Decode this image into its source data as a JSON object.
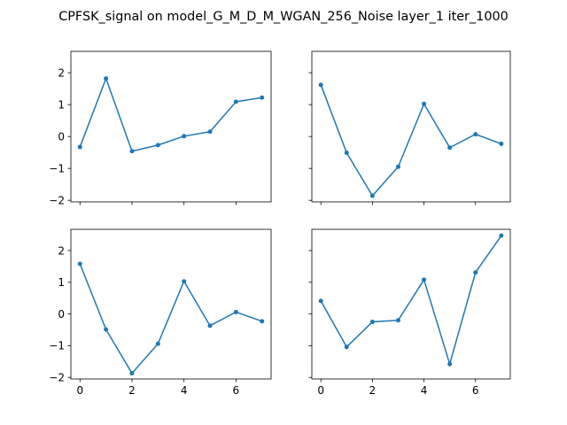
{
  "title": "CPFSK_signal on model_G_M_D_M_WGAN_256_Noise layer_1 iter_1000",
  "line_color": "#1f77b4",
  "chart_data": [
    {
      "type": "line",
      "x": [
        0,
        1,
        2,
        3,
        4,
        5,
        6,
        7
      ],
      "series": [
        {
          "values": [
            -0.33,
            1.82,
            -0.46,
            -0.27,
            0.01,
            0.15,
            1.09,
            1.22
          ]
        }
      ],
      "xlim": [
        -0.35,
        7.35
      ],
      "ylim": [
        -2.05,
        2.67
      ],
      "xticks": [
        0,
        2,
        4,
        6
      ],
      "yticks": [
        -2,
        -1,
        0,
        1,
        2
      ],
      "show_xticklabels": false,
      "show_yticklabels": true,
      "grid": false
    },
    {
      "type": "line",
      "x": [
        0,
        1,
        2,
        3,
        4,
        5,
        6,
        7
      ],
      "series": [
        {
          "values": [
            1.62,
            -0.51,
            -1.86,
            -0.95,
            1.02,
            -0.35,
            0.07,
            -0.23
          ]
        }
      ],
      "xlim": [
        -0.35,
        7.35
      ],
      "ylim": [
        -2.05,
        2.67
      ],
      "xticks": [
        0,
        2,
        4,
        6
      ],
      "yticks": [
        -2,
        -1,
        0,
        1,
        2
      ],
      "show_xticklabels": false,
      "show_yticklabels": false,
      "grid": false
    },
    {
      "type": "line",
      "x": [
        0,
        1,
        2,
        3,
        4,
        5,
        6,
        7
      ],
      "series": [
        {
          "values": [
            1.58,
            -0.49,
            -1.87,
            -0.94,
            1.03,
            -0.37,
            0.06,
            -0.23
          ]
        }
      ],
      "xlim": [
        -0.35,
        7.35
      ],
      "ylim": [
        -2.05,
        2.67
      ],
      "xticks": [
        0,
        2,
        4,
        6
      ],
      "yticks": [
        -2,
        -1,
        0,
        1,
        2
      ],
      "show_xticklabels": true,
      "show_yticklabels": true,
      "grid": false
    },
    {
      "type": "line",
      "x": [
        0,
        1,
        2,
        3,
        4,
        5,
        6,
        7
      ],
      "series": [
        {
          "values": [
            0.41,
            -1.04,
            -0.25,
            -0.2,
            1.08,
            -1.58,
            1.31,
            2.47
          ]
        }
      ],
      "xlim": [
        -0.35,
        7.35
      ],
      "ylim": [
        -2.05,
        2.67
      ],
      "xticks": [
        0,
        2,
        4,
        6
      ],
      "yticks": [
        -2,
        -1,
        0,
        1,
        2
      ],
      "show_xticklabels": true,
      "show_yticklabels": false,
      "grid": false
    }
  ]
}
